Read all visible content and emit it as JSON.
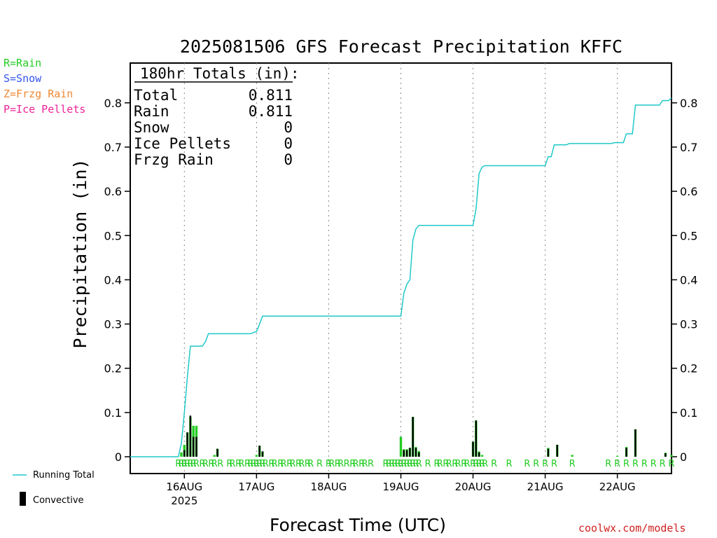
{
  "chart_data": {
    "type": "bar",
    "title": "2025081506 GFS Forecast Precipitation KFFC",
    "xlabel": "Forecast Time (UTC)",
    "ylabel": "Precipitation (in)",
    "ylim": [
      0,
      0.88
    ],
    "yticks": [
      "0",
      "0.1",
      "0.2",
      "0.3",
      "0.4",
      "0.5",
      "0.6",
      "0.7",
      "0.8"
    ],
    "x_unit": "forecast hour",
    "xlim_hours": [
      0,
      180
    ],
    "xtick_labels": [
      {
        "label": "16AUG",
        "hour": 18,
        "sub": "2025"
      },
      {
        "label": "17AUG",
        "hour": 42,
        "sub": ""
      },
      {
        "label": "18AUG",
        "hour": 66,
        "sub": ""
      },
      {
        "label": "19AUG",
        "hour": 90,
        "sub": ""
      },
      {
        "label": "20AUG",
        "hour": 114,
        "sub": ""
      },
      {
        "label": "21AUG",
        "hour": 138,
        "sub": ""
      },
      {
        "label": "22AUG",
        "hour": 162,
        "sub": ""
      }
    ],
    "grid": "dotted vertical lines at 00Z each day",
    "precip_type_legend": [
      {
        "text": "R=Rain",
        "color": "#22cc22"
      },
      {
        "text": "S=Snow",
        "color": "#3355ee"
      },
      {
        "text": "Z=Frzg Rain",
        "color": "#ee8833"
      },
      {
        "text": "P=Ice Pellets",
        "color": "#ee2299"
      }
    ],
    "totals_box": {
      "heading": "180hr Totals (in):",
      "rows": [
        {
          "label": "Total",
          "value": "0.811"
        },
        {
          "label": "Rain",
          "value": "0.811"
        },
        {
          "label": "Snow",
          "value": "0"
        },
        {
          "label": "Ice Pellets",
          "value": "0"
        },
        {
          "label": "Frzg Rain",
          "value": "0"
        }
      ]
    },
    "series": [
      {
        "name": "Running Total",
        "kind": "line",
        "color": "#20c8c8",
        "points": [
          [
            0,
            0
          ],
          [
            16,
            0
          ],
          [
            17,
            0.03
          ],
          [
            18,
            0.1
          ],
          [
            19,
            0.18
          ],
          [
            20,
            0.25
          ],
          [
            24,
            0.25
          ],
          [
            25,
            0.26
          ],
          [
            26,
            0.278
          ],
          [
            40,
            0.278
          ],
          [
            41,
            0.281
          ],
          [
            42,
            0.283
          ],
          [
            43,
            0.3
          ],
          [
            44,
            0.318
          ],
          [
            90,
            0.318
          ],
          [
            91,
            0.37
          ],
          [
            92,
            0.39
          ],
          [
            93,
            0.4
          ],
          [
            94,
            0.49
          ],
          [
            95,
            0.515
          ],
          [
            96,
            0.523
          ],
          [
            114,
            0.523
          ],
          [
            115,
            0.56
          ],
          [
            116,
            0.64
          ],
          [
            117,
            0.655
          ],
          [
            118,
            0.658
          ],
          [
            138,
            0.658
          ],
          [
            139,
            0.678
          ],
          [
            140,
            0.678
          ],
          [
            141,
            0.705
          ],
          [
            145,
            0.705
          ],
          [
            146,
            0.708
          ],
          [
            160,
            0.708
          ],
          [
            161,
            0.71
          ],
          [
            164,
            0.71
          ],
          [
            165,
            0.73
          ],
          [
            167,
            0.73
          ],
          [
            168,
            0.795
          ],
          [
            176,
            0.795
          ],
          [
            177,
            0.805
          ],
          [
            179,
            0.805
          ],
          [
            180,
            0.811
          ]
        ]
      },
      {
        "name": "Rain",
        "kind": "bar",
        "color": "#22cc22",
        "hours": [
          17,
          18,
          19,
          20,
          21,
          22,
          28,
          29,
          42,
          43,
          44,
          90,
          91,
          92,
          93,
          94,
          95,
          96,
          114,
          115,
          116,
          117,
          139,
          142,
          147,
          162,
          165,
          168,
          178,
          180
        ],
        "values": [
          0.01,
          0.027,
          0.055,
          0.09,
          0.07,
          0.07,
          0.004,
          0.018,
          0.004,
          0.025,
          0.012,
          0.045,
          0.017,
          0.017,
          0.02,
          0.09,
          0.022,
          0.013,
          0.034,
          0.082,
          0.012,
          0.004,
          0.02,
          0.027,
          0.004,
          0.002,
          0.022,
          0.062,
          0.009,
          0.004
        ]
      },
      {
        "name": "Convective",
        "kind": "bar",
        "color": "#000000",
        "hours": [
          18,
          19,
          20,
          21,
          22,
          29,
          43,
          44,
          91,
          92,
          93,
          94,
          95,
          96,
          114,
          115,
          116,
          139,
          142,
          165,
          168,
          178
        ],
        "values": [
          0.015,
          0.055,
          0.093,
          0.045,
          0.045,
          0.018,
          0.025,
          0.012,
          0.015,
          0.015,
          0.02,
          0.09,
          0.02,
          0.01,
          0.034,
          0.082,
          0.01,
          0.018,
          0.027,
          0.02,
          0.062,
          0.008
        ]
      }
    ],
    "precip_type_markers": {
      "symbol": "R",
      "color": "#22cc22",
      "hours": [
        16,
        17,
        18,
        19,
        20,
        21,
        22,
        24,
        25,
        27,
        28,
        30,
        33,
        34,
        36,
        37,
        39,
        40,
        41,
        42,
        43,
        44,
        45,
        47,
        48,
        50,
        51,
        53,
        54,
        56,
        57,
        59,
        60,
        63,
        66,
        67,
        69,
        70,
        72,
        74,
        75,
        77,
        78,
        80,
        85,
        86,
        87,
        88,
        89,
        90,
        91,
        92,
        93,
        94,
        95,
        96,
        99,
        102,
        103,
        105,
        106,
        108,
        109,
        111,
        112,
        114,
        115,
        116,
        117,
        118,
        121,
        126,
        132,
        135,
        138,
        141,
        147,
        159,
        162,
        165,
        168,
        171,
        174,
        177,
        180
      ]
    },
    "bottom_legend": {
      "line_label": "Running Total",
      "bar_label": "Convective"
    }
  },
  "credit": "coolwx.com/models"
}
